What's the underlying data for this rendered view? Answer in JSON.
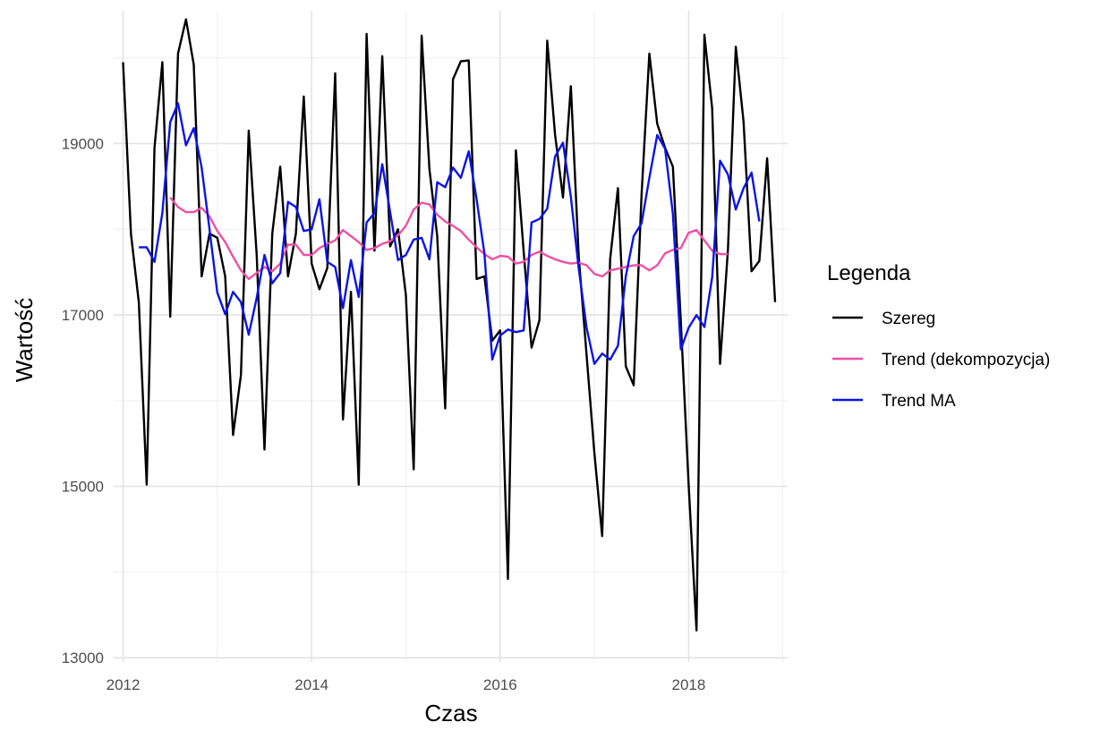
{
  "chart_data": {
    "type": "line",
    "xlabel": "Czas",
    "ylabel": "Wartość",
    "xlim": [
      2011.9,
      2019.05
    ],
    "ylim": [
      12950,
      20550
    ],
    "x_ticks": [
      2012,
      2014,
      2016,
      2018
    ],
    "x_tick_labels": [
      "2012",
      "2014",
      "2016",
      "2018"
    ],
    "y_ticks": [
      13000,
      15000,
      17000,
      19000
    ],
    "y_tick_labels": [
      "13000",
      "15000",
      "17000",
      "19000"
    ],
    "grid": true,
    "legend": {
      "title": "Legenda",
      "placement": "right",
      "entries": [
        "Szereg",
        "Trend (dekompozycja)",
        "Trend MA"
      ]
    },
    "colors": {
      "Szereg": "#000000",
      "Trend (dekompozycja)": "#f04fa6",
      "Trend MA": "#0a14e6"
    },
    "series": [
      {
        "name": "Szereg",
        "x": [
          2012.0,
          2012.083,
          2012.167,
          2012.25,
          2012.333,
          2012.417,
          2012.5,
          2012.583,
          2012.667,
          2012.75,
          2012.833,
          2012.917,
          2013.0,
          2013.083,
          2013.167,
          2013.25,
          2013.333,
          2013.417,
          2013.5,
          2013.583,
          2013.667,
          2013.75,
          2013.833,
          2013.917,
          2014.0,
          2014.083,
          2014.167,
          2014.25,
          2014.333,
          2014.417,
          2014.5,
          2014.583,
          2014.667,
          2014.75,
          2014.833,
          2014.917,
          2015.0,
          2015.083,
          2015.167,
          2015.25,
          2015.333,
          2015.417,
          2015.5,
          2015.583,
          2015.667,
          2015.75,
          2015.833,
          2015.917,
          2016.0,
          2016.083,
          2016.167,
          2016.25,
          2016.333,
          2016.417,
          2016.5,
          2016.583,
          2016.667,
          2016.75,
          2016.833,
          2016.917,
          2017.0,
          2017.083,
          2017.167,
          2017.25,
          2017.333,
          2017.417,
          2017.5,
          2017.583,
          2017.667,
          2017.75,
          2017.833,
          2017.917,
          2018.0,
          2018.083,
          2018.167,
          2018.25,
          2018.333,
          2018.417,
          2018.5,
          2018.583,
          2018.667,
          2018.75,
          2018.833,
          2018.917
        ],
        "values": [
          19950,
          17950,
          17150,
          15020,
          18950,
          19950,
          16980,
          20050,
          20450,
          19920,
          17450,
          17950,
          17900,
          17450,
          15600,
          16300,
          19150,
          17700,
          15430,
          17950,
          18730,
          17450,
          17950,
          19550,
          17600,
          17300,
          17550,
          19820,
          15780,
          17270,
          15020,
          20280,
          17750,
          20020,
          17800,
          18000,
          17230,
          15200,
          20260,
          18700,
          17920,
          15910,
          19750,
          19960,
          19970,
          17420,
          17450,
          16700,
          16820,
          13920,
          18920,
          17740,
          16620,
          16940,
          20200,
          19100,
          18370,
          19670,
          17700,
          16530,
          15390,
          14420,
          17650,
          18480,
          16400,
          16180,
          18400,
          20050,
          19230,
          18950,
          18730,
          16920,
          15020,
          13320,
          20270,
          19410,
          16430,
          17760,
          20130,
          19250,
          17510,
          17630,
          18830,
          17150
        ]
      },
      {
        "name": "Trend (dekompozycja)",
        "x": [
          2012.5,
          2012.583,
          2012.667,
          2012.75,
          2012.833,
          2012.917,
          2013.0,
          2013.083,
          2013.167,
          2013.25,
          2013.333,
          2013.417,
          2013.5,
          2013.583,
          2013.667,
          2013.75,
          2013.833,
          2013.917,
          2014.0,
          2014.083,
          2014.167,
          2014.25,
          2014.333,
          2014.417,
          2014.5,
          2014.583,
          2014.667,
          2014.75,
          2014.833,
          2014.917,
          2015.0,
          2015.083,
          2015.167,
          2015.25,
          2015.333,
          2015.417,
          2015.5,
          2015.583,
          2015.667,
          2015.75,
          2015.833,
          2015.917,
          2016.0,
          2016.083,
          2016.167,
          2016.25,
          2016.333,
          2016.417,
          2016.5,
          2016.583,
          2016.667,
          2016.75,
          2016.833,
          2016.917,
          2017.0,
          2017.083,
          2017.167,
          2017.25,
          2017.333,
          2017.417,
          2017.5,
          2017.583,
          2017.667,
          2017.75,
          2017.833,
          2017.917,
          2018.0,
          2018.083,
          2018.167,
          2018.25,
          2018.333,
          2018.417
        ],
        "values": [
          18370,
          18260,
          18200,
          18200,
          18250,
          18150,
          17980,
          17850,
          17680,
          17520,
          17420,
          17490,
          17560,
          17510,
          17600,
          17820,
          17820,
          17700,
          17700,
          17780,
          17830,
          17870,
          17990,
          17920,
          17850,
          17760,
          17780,
          17830,
          17860,
          17930,
          18040,
          18230,
          18310,
          18290,
          18170,
          18090,
          18040,
          17980,
          17880,
          17790,
          17710,
          17650,
          17690,
          17680,
          17600,
          17620,
          17700,
          17740,
          17690,
          17650,
          17620,
          17600,
          17610,
          17580,
          17480,
          17450,
          17520,
          17540,
          17560,
          17580,
          17580,
          17520,
          17580,
          17720,
          17760,
          17780,
          17960,
          17990,
          17870,
          17750,
          17710,
          17710
        ]
      },
      {
        "name": "Trend MA",
        "x": [
          2012.167,
          2012.25,
          2012.333,
          2012.417,
          2012.5,
          2012.583,
          2012.667,
          2012.75,
          2012.833,
          2012.917,
          2013.0,
          2013.083,
          2013.167,
          2013.25,
          2013.333,
          2013.417,
          2013.5,
          2013.583,
          2013.667,
          2013.75,
          2013.833,
          2013.917,
          2014.0,
          2014.083,
          2014.167,
          2014.25,
          2014.333,
          2014.417,
          2014.5,
          2014.583,
          2014.667,
          2014.75,
          2014.833,
          2014.917,
          2015.0,
          2015.083,
          2015.167,
          2015.25,
          2015.333,
          2015.417,
          2015.5,
          2015.583,
          2015.667,
          2015.75,
          2015.833,
          2015.917,
          2016.0,
          2016.083,
          2016.167,
          2016.25,
          2016.333,
          2016.417,
          2016.5,
          2016.583,
          2016.667,
          2016.75,
          2016.833,
          2016.917,
          2017.0,
          2017.083,
          2017.167,
          2017.25,
          2017.333,
          2017.417,
          2017.5,
          2017.583,
          2017.667,
          2017.75,
          2017.833,
          2017.917,
          2018.0,
          2018.083,
          2018.167,
          2018.25,
          2018.333,
          2018.417,
          2018.5,
          2018.583,
          2018.667,
          2018.75
        ],
        "values": [
          17790,
          17790,
          17620,
          18190,
          19250,
          19470,
          18980,
          19180,
          18720,
          18000,
          17260,
          17010,
          17270,
          17150,
          16770,
          17200,
          17700,
          17370,
          17490,
          18320,
          18260,
          17980,
          18000,
          18350,
          17620,
          17560,
          17080,
          17640,
          17210,
          18080,
          18190,
          18760,
          18200,
          17640,
          17700,
          17880,
          17900,
          17650,
          18550,
          18490,
          18720,
          18600,
          18910,
          18350,
          17720,
          16480,
          16760,
          16830,
          16800,
          16820,
          18080,
          18120,
          18240,
          18850,
          19010,
          18380,
          17550,
          16850,
          16430,
          16550,
          16480,
          16640,
          17450,
          17920,
          18070,
          18600,
          19100,
          18940,
          18180,
          16600,
          16850,
          17000,
          16860,
          17440,
          18800,
          18640,
          18230,
          18480,
          18660,
          18090
        ]
      }
    ]
  }
}
